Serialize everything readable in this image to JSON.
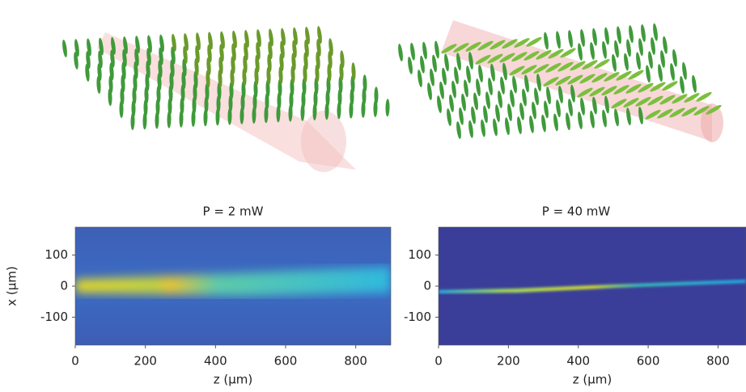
{
  "chart_data": [
    {
      "type": "heatmap",
      "title": "P = 2 mW",
      "xlabel": "z (μm)",
      "ylabel": "x (μm)",
      "xlim": [
        0,
        900
      ],
      "ylim": [
        -190,
        190
      ],
      "xticks": [
        0,
        200,
        400,
        600,
        800
      ],
      "yticks": [
        100,
        0,
        -100
      ]
    },
    {
      "type": "heatmap",
      "title": "P = 40 mW",
      "xlabel": "z (μm)",
      "xlim": [
        0,
        880
      ],
      "ylim": [
        -190,
        190
      ],
      "xticks": [
        0,
        200,
        400,
        600,
        800
      ],
      "yticks": [
        100,
        0,
        -100
      ]
    }
  ]
}
